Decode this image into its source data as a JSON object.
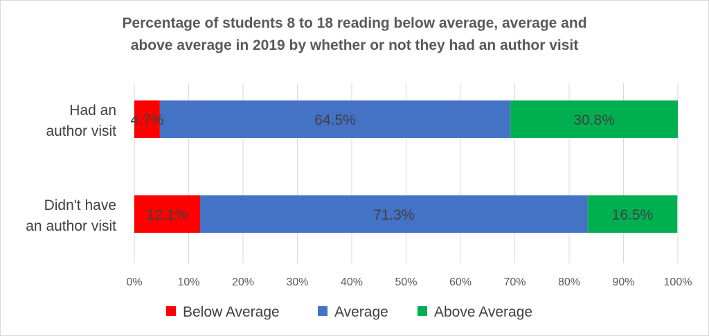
{
  "chart_data": {
    "type": "bar",
    "orientation": "horizontal",
    "stacked": true,
    "title_lines": [
      "Percentage of students 8 to 18 reading below average, average and",
      "above average in 2019 by whether or not they had an author visit"
    ],
    "categories": [
      [
        "Had an",
        "author visit"
      ],
      [
        "Didn't have",
        "an author visit"
      ]
    ],
    "series": [
      {
        "name": "Below Average",
        "color": "#ff0000",
        "values": [
          4.7,
          12.1
        ],
        "labels": [
          "4.7%",
          "12.1%"
        ]
      },
      {
        "name": "Average",
        "color": "#4472c4",
        "values": [
          64.5,
          71.3
        ],
        "labels": [
          "64.5%",
          "71.3%"
        ]
      },
      {
        "name": "Above Average",
        "color": "#00b050",
        "values": [
          30.8,
          16.5
        ],
        "labels": [
          "30.8%",
          "16.5%"
        ]
      }
    ],
    "xlim": [
      0,
      100
    ],
    "xticks": [
      "0%",
      "10%",
      "20%",
      "30%",
      "40%",
      "50%",
      "60%",
      "70%",
      "80%",
      "90%",
      "100%"
    ],
    "grid": true,
    "legend_position": "bottom"
  }
}
